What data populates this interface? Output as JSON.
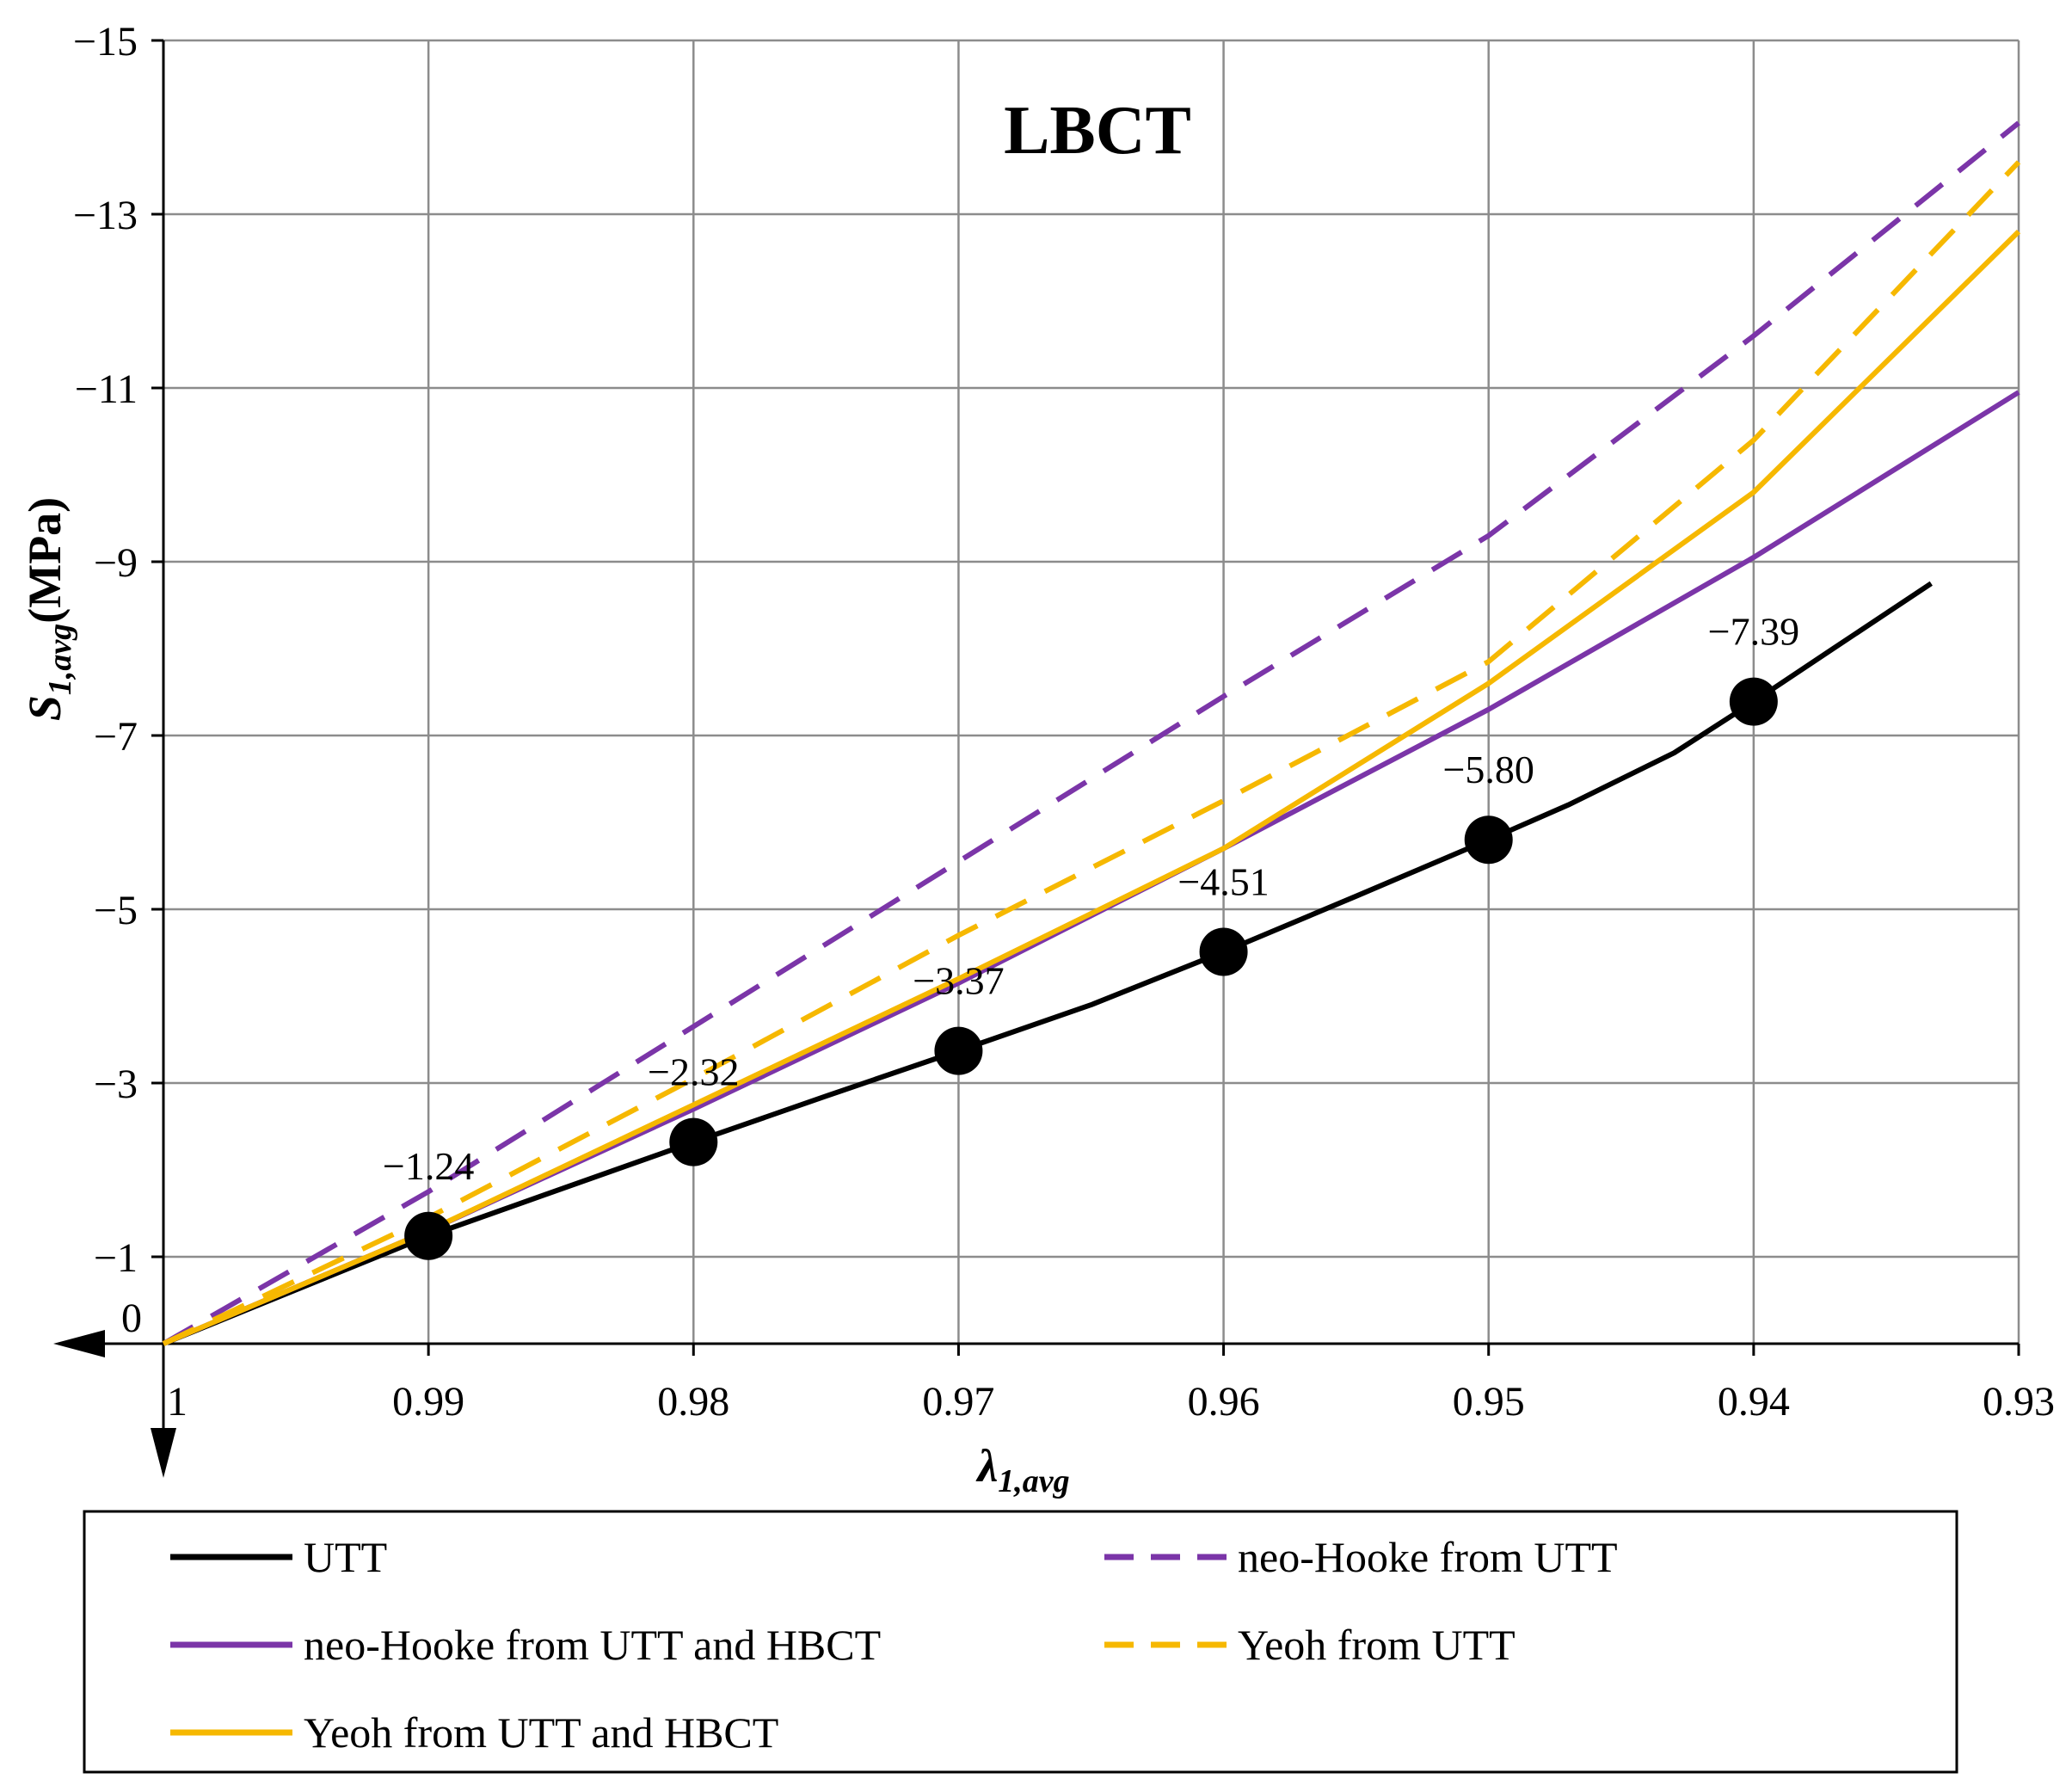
{
  "chart_data": {
    "type": "line",
    "title": "LBCT",
    "xlabel": {
      "main": "λ",
      "sub": "1,avg"
    },
    "ylabel": {
      "main": "S",
      "sub": "1,avg",
      "unit": "(MPa)"
    },
    "xlim": [
      1,
      0.93
    ],
    "ylim": [
      0,
      -15
    ],
    "xticks": [
      {
        "v": 1,
        "label": "1"
      },
      {
        "v": 0.99,
        "label": "0.99"
      },
      {
        "v": 0.98,
        "label": "0.98"
      },
      {
        "v": 0.97,
        "label": "0.97"
      },
      {
        "v": 0.96,
        "label": "0.96"
      },
      {
        "v": 0.95,
        "label": "0.95"
      },
      {
        "v": 0.94,
        "label": "0.94"
      },
      {
        "v": 0.93,
        "label": "0.93"
      }
    ],
    "yticks": [
      {
        "v": 0,
        "label": "0"
      },
      {
        "v": -1,
        "label": "−1"
      },
      {
        "v": -3,
        "label": "−3"
      },
      {
        "v": -5,
        "label": "−5"
      },
      {
        "v": -7,
        "label": "−7"
      },
      {
        "v": -9,
        "label": "−9"
      },
      {
        "v": -11,
        "label": "−11"
      },
      {
        "v": -13,
        "label": "−13"
      },
      {
        "v": -15,
        "label": "−15"
      }
    ],
    "grid": true,
    "legend_position": "bottom",
    "series": [
      {
        "name": "UTT",
        "color": "#000000",
        "dash": "solid",
        "points": [
          [
            1,
            0
          ],
          [
            0.99,
            -1.24
          ],
          [
            0.98,
            -2.32
          ],
          [
            0.975,
            -2.85
          ],
          [
            0.97,
            -3.37
          ],
          [
            0.965,
            -3.9
          ],
          [
            0.96,
            -4.51
          ],
          [
            0.955,
            -5.15
          ],
          [
            0.95,
            -5.8
          ],
          [
            0.947,
            -6.2
          ],
          [
            0.943,
            -6.8
          ],
          [
            0.94,
            -7.39
          ],
          [
            0.937,
            -8.0
          ],
          [
            0.9333,
            -8.75
          ]
        ]
      },
      {
        "name": "neo-Hooke from UTT",
        "color": "#7b35a8",
        "dash": "dashed",
        "points": [
          [
            1,
            0
          ],
          [
            0.99,
            -1.75
          ],
          [
            0.98,
            -3.65
          ],
          [
            0.97,
            -5.55
          ],
          [
            0.96,
            -7.45
          ],
          [
            0.95,
            -9.3
          ],
          [
            0.94,
            -11.6
          ],
          [
            0.93,
            -14.05
          ]
        ]
      },
      {
        "name": "neo-Hooke from UTT and HBCT",
        "color": "#7b35a8",
        "dash": "solid",
        "points": [
          [
            1,
            0
          ],
          [
            0.99,
            -1.3
          ],
          [
            0.98,
            -2.7
          ],
          [
            0.97,
            -4.15
          ],
          [
            0.96,
            -5.7
          ],
          [
            0.95,
            -7.3
          ],
          [
            0.94,
            -9.05
          ],
          [
            0.93,
            -10.95
          ]
        ]
      },
      {
        "name": "Yeoh from UTT",
        "color": "#f6b800",
        "dash": "dashed",
        "points": [
          [
            1,
            0
          ],
          [
            0.99,
            -1.45
          ],
          [
            0.98,
            -3.05
          ],
          [
            0.97,
            -4.7
          ],
          [
            0.96,
            -6.25
          ],
          [
            0.95,
            -7.85
          ],
          [
            0.94,
            -10.4
          ],
          [
            0.93,
            -13.6
          ]
        ]
      },
      {
        "name": "Yeoh from UTT and HBCT",
        "color": "#f6b800",
        "dash": "solid",
        "points": [
          [
            1,
            0
          ],
          [
            0.99,
            -1.3
          ],
          [
            0.98,
            -2.75
          ],
          [
            0.97,
            -4.2
          ],
          [
            0.96,
            -5.7
          ],
          [
            0.95,
            -7.6
          ],
          [
            0.945,
            -8.7
          ],
          [
            0.94,
            -9.8
          ],
          [
            0.93,
            -12.8
          ]
        ]
      }
    ],
    "markers": [
      {
        "x": 0.99,
        "y": -1.24,
        "label": "−1.24"
      },
      {
        "x": 0.98,
        "y": -2.32,
        "label": "−2.32"
      },
      {
        "x": 0.97,
        "y": -3.37,
        "label": "−3.37"
      },
      {
        "x": 0.96,
        "y": -4.51,
        "label": "−4.51"
      },
      {
        "x": 0.95,
        "y": -5.8,
        "label": "−5.80"
      },
      {
        "x": 0.94,
        "y": -7.39,
        "label": "−7.39"
      }
    ]
  }
}
